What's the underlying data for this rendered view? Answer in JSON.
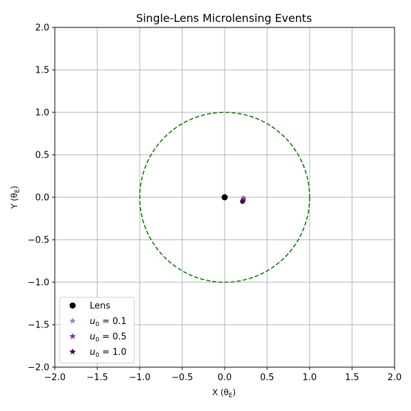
{
  "chart_data": {
    "type": "scatter",
    "title": "Single-Lens Microlensing Events",
    "xlabel": "X (θ",
    "xlabel_sub": "E",
    "xlabel_end": ")",
    "ylabel": "Y (θ",
    "ylabel_sub": "E",
    "ylabel_end": ")",
    "xlim": [
      -2.0,
      2.0
    ],
    "ylim": [
      -2.0,
      2.0
    ],
    "xticks": [
      -2.0,
      -1.5,
      -1.0,
      -0.5,
      0.0,
      0.5,
      1.0,
      1.5,
      2.0
    ],
    "yticks": [
      -2.0,
      -1.5,
      -1.0,
      -0.5,
      0.0,
      0.5,
      1.0,
      1.5,
      2.0
    ],
    "xtick_labels": [
      "−2.0",
      "−1.5",
      "−1.0",
      "−0.5",
      "0.0",
      "0.5",
      "1.0",
      "1.5",
      "2.0"
    ],
    "ytick_labels": [
      "−2.0",
      "−1.5",
      "−1.0",
      "−0.5",
      "0.0",
      "0.5",
      "1.0",
      "1.5",
      "2.0"
    ],
    "grid": true,
    "legend_position": "lower-left",
    "einstein_ring": {
      "radius": 1.0,
      "color": "#008000",
      "style": "dashed"
    },
    "series": [
      {
        "name": "Lens",
        "marker": "circle",
        "color": "#000000",
        "x": [
          0.0
        ],
        "y": [
          0.0
        ]
      },
      {
        "name_prefix": "u",
        "name_sub": "0",
        "name_suffix": " = 0.1",
        "marker": "star",
        "color": "#8c8ec9",
        "x": [
          0.22
        ],
        "y": [
          -0.01
        ]
      },
      {
        "name_prefix": "u",
        "name_sub": "0",
        "name_suffix": " = 0.5",
        "marker": "star",
        "color": "#7a3c9a",
        "x": [
          0.22
        ],
        "y": [
          -0.03
        ]
      },
      {
        "name_prefix": "u",
        "name_sub": "0",
        "name_suffix": " = 1.0",
        "marker": "star",
        "color": "#4a0a4a",
        "x": [
          0.21
        ],
        "y": [
          -0.05
        ]
      }
    ]
  }
}
